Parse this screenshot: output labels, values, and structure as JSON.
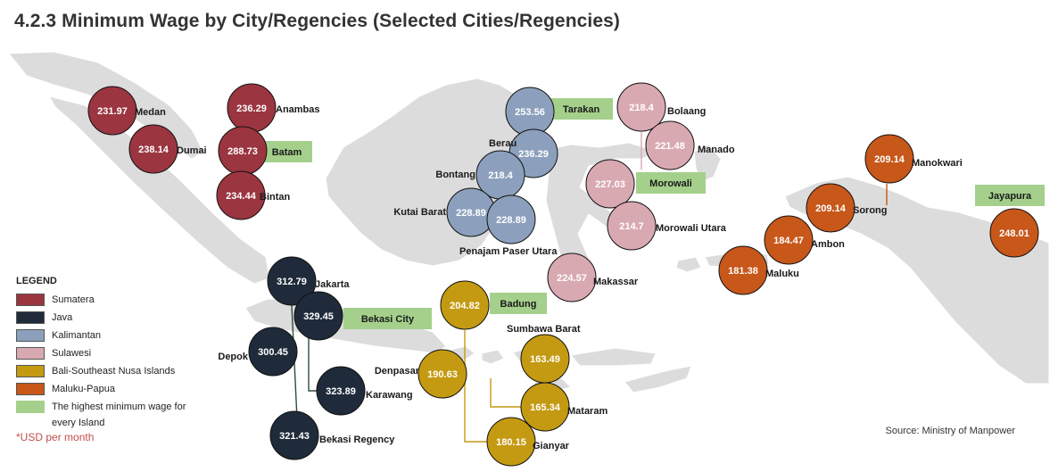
{
  "title": "4.2.3 Minimum Wage by City/Regencies (Selected Cities/Regencies)",
  "colors": {
    "Sumatera": "#9b3540",
    "Java": "#1f2b3a",
    "Kalimantan": "#8ca0bd",
    "Sulawesi": "#d9a9b2",
    "Bali-Southeast Nusa Islands": "#c49a12",
    "Maluku-Papua": "#c8571a",
    "highest": "#a4d08c",
    "land": "#dcdcdc"
  },
  "legend": {
    "title": "LEGEND",
    "items": [
      {
        "label": "Sumatera",
        "color": "#9b3540"
      },
      {
        "label": "Java",
        "color": "#1f2b3a"
      },
      {
        "label": "Kalimantan",
        "color": "#8ca0bd"
      },
      {
        "label": "Sulawesi",
        "color": "#d9a9b2"
      },
      {
        "label": "Bali-Southeast Nusa Islands",
        "color": "#c49a12"
      },
      {
        "label": "Maluku-Papua",
        "color": "#c8571a"
      },
      {
        "label": "The highest minimum wage for every Island",
        "color": "#a4d08c"
      }
    ],
    "note": "*USD per month"
  },
  "source": "Source: Ministry of Manpower",
  "cities": [
    {
      "name": "Medan",
      "value": "231.97",
      "region": "Sumatera"
    },
    {
      "name": "Dumai",
      "value": "238.14",
      "region": "Sumatera"
    },
    {
      "name": "Anambas",
      "value": "236.29",
      "region": "Sumatera"
    },
    {
      "name": "Batam",
      "value": "288.73",
      "region": "Sumatera",
      "highest": true
    },
    {
      "name": "Bintan",
      "value": "234.44",
      "region": "Sumatera"
    },
    {
      "name": "Jakarta",
      "value": "312.79",
      "region": "Java"
    },
    {
      "name": "Bekasi City",
      "value": "329.45",
      "region": "Java",
      "highest": true
    },
    {
      "name": "Depok",
      "value": "300.45",
      "region": "Java"
    },
    {
      "name": "Karawang",
      "value": "323.89",
      "region": "Java"
    },
    {
      "name": "Bekasi Regency",
      "value": "321.43",
      "region": "Java"
    },
    {
      "name": "Tarakan",
      "value": "253.56",
      "region": "Kalimantan",
      "highest": true
    },
    {
      "name": "Berau",
      "value": "236.29",
      "region": "Kalimantan"
    },
    {
      "name": "Bontang",
      "value": "218.4",
      "region": "Kalimantan"
    },
    {
      "name": "Kutai Barat",
      "value": "228.89",
      "region": "Kalimantan"
    },
    {
      "name": "Penajam Paser Utara",
      "value": "228.89",
      "region": "Kalimantan"
    },
    {
      "name": "Bolaang",
      "value": "218.4",
      "region": "Sulawesi"
    },
    {
      "name": "Manado",
      "value": "221.48",
      "region": "Sulawesi"
    },
    {
      "name": "Morowali",
      "value": "227.03",
      "region": "Sulawesi",
      "highest": true
    },
    {
      "name": "Morowali Utara",
      "value": "214.7",
      "region": "Sulawesi"
    },
    {
      "name": "Makassar",
      "value": "224.57",
      "region": "Sulawesi"
    },
    {
      "name": "Badung",
      "value": "204.82",
      "region": "Bali-Southeast Nusa Islands",
      "highest": true
    },
    {
      "name": "Sumbawa Barat",
      "value": "163.49",
      "region": "Bali-Southeast Nusa Islands"
    },
    {
      "name": "Denpasar",
      "value": "190.63",
      "region": "Bali-Southeast Nusa Islands"
    },
    {
      "name": "Mataram",
      "value": "165.34",
      "region": "Bali-Southeast Nusa Islands"
    },
    {
      "name": "Gianyar",
      "value": "180.15",
      "region": "Bali-Southeast Nusa Islands"
    },
    {
      "name": "Manokwari",
      "value": "209.14",
      "region": "Maluku-Papua"
    },
    {
      "name": "Sorong",
      "value": "209.14",
      "region": "Maluku-Papua"
    },
    {
      "name": "Ambon",
      "value": "184.47",
      "region": "Maluku-Papua"
    },
    {
      "name": "Maluku",
      "value": "181.38",
      "region": "Maluku-Papua"
    },
    {
      "name": "Jayapura",
      "value": "248.01",
      "region": "Maluku-Papua",
      "highest": true
    }
  ]
}
